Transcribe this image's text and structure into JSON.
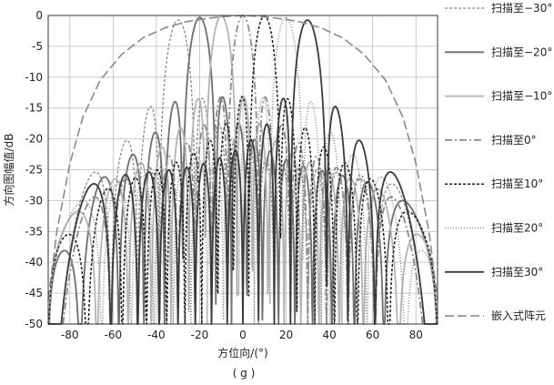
{
  "chart_data": {
    "type": "line",
    "caption": "( g )",
    "xlabel": "方位向/(°)",
    "ylabel": "方向图幅值/dB",
    "xlim": [
      -90,
      90
    ],
    "ylim": [
      -50,
      0
    ],
    "xticks": [
      -80,
      -60,
      -40,
      -20,
      0,
      20,
      40,
      60,
      80
    ],
    "yticks": [
      0,
      -5,
      -10,
      -15,
      -20,
      -25,
      -30,
      -35,
      -40,
      -45,
      -50
    ],
    "grid": true,
    "legend_position": "right",
    "series": [
      {
        "name": "扫描至−30°",
        "scan": -30,
        "dash": "3,2",
        "color": "#8a8a8a",
        "width": 1.3,
        "sidelobe_peaks": [
          [
            -78,
            -32
          ],
          [
            -70,
            -26
          ],
          [
            -60,
            -22
          ],
          [
            -48,
            -17
          ],
          [
            -12,
            -14
          ],
          [
            8,
            -16
          ],
          [
            22,
            -18
          ],
          [
            40,
            -21
          ],
          [
            56,
            -23
          ],
          [
            72,
            -25
          ],
          [
            84,
            -34
          ]
        ]
      },
      {
        "name": "扫描至−20°",
        "scan": -20,
        "dash": "",
        "color": "#6e6e6e",
        "width": 1.8,
        "sidelobe_peaks": [
          [
            -82,
            -40
          ],
          [
            -66,
            -22
          ],
          [
            -54,
            -18
          ],
          [
            -38,
            -14
          ],
          [
            -2,
            -17
          ],
          [
            10,
            -19
          ],
          [
            26,
            -21
          ],
          [
            44,
            -21
          ],
          [
            60,
            -22
          ],
          [
            76,
            -24
          ]
        ]
      },
      {
        "name": "扫描至−10°",
        "scan": -10,
        "dash": "",
        "color": "#b4b4b4",
        "width": 1.8,
        "sidelobe_peaks": [
          [
            -80,
            -38
          ],
          [
            -64,
            -24
          ],
          [
            -48,
            -20
          ],
          [
            -28,
            -14
          ],
          [
            8,
            -14
          ],
          [
            20,
            -16
          ],
          [
            36,
            -19
          ],
          [
            52,
            -22
          ],
          [
            68,
            -22
          ],
          [
            80,
            -30
          ]
        ]
      },
      {
        "name": "扫描至0°",
        "scan": 0,
        "dash": "8,3,2,3",
        "color": "#8c8c8c",
        "width": 1.8,
        "sidelobe_peaks": [
          [
            -78,
            -36
          ],
          [
            -62,
            -26
          ],
          [
            -44,
            -21
          ],
          [
            -18,
            -13.5
          ],
          [
            18,
            -13.5
          ],
          [
            44,
            -21
          ],
          [
            62,
            -26
          ],
          [
            78,
            -36
          ]
        ]
      },
      {
        "name": "扫描至10°",
        "scan": 10,
        "dash": "3,2",
        "color": "#1e1e1e",
        "width": 1.5,
        "sidelobe_peaks": [
          [
            -80,
            -36
          ],
          [
            -68,
            -24
          ],
          [
            -52,
            -22
          ],
          [
            -36,
            -19
          ],
          [
            -20,
            -16
          ],
          [
            -8,
            -14
          ],
          [
            28,
            -14
          ],
          [
            48,
            -20
          ],
          [
            64,
            -24
          ],
          [
            80,
            -38
          ]
        ]
      },
      {
        "name": "扫描至20°",
        "scan": 20,
        "dash": "1,2",
        "color": "#8c8c8c",
        "width": 1.5,
        "sidelobe_peaks": [
          [
            -76,
            -24
          ],
          [
            -60,
            -22
          ],
          [
            -44,
            -21
          ],
          [
            -26,
            -21
          ],
          [
            -10,
            -19
          ],
          [
            2,
            -17
          ],
          [
            38,
            -14
          ],
          [
            54,
            -18
          ],
          [
            66,
            -22
          ],
          [
            82,
            -40
          ]
        ]
      },
      {
        "name": "扫描至30°",
        "scan": 30,
        "dash": "",
        "color": "#3a3a3a",
        "width": 1.8,
        "sidelobe_peaks": [
          [
            -84,
            -34
          ],
          [
            -72,
            -25
          ],
          [
            -56,
            -23
          ],
          [
            -40,
            -21
          ],
          [
            -22,
            -18
          ],
          [
            -8,
            -16
          ],
          [
            12,
            -14
          ],
          [
            40,
            -19
          ],
          [
            54,
            -16
          ],
          [
            66,
            -24
          ],
          [
            80,
            -34
          ]
        ]
      },
      {
        "name": "嵌入式阵元",
        "scan": null,
        "dash": "10,4",
        "color": "#8a8a8a",
        "width": 1.6,
        "points": [
          [
            -90,
            -46
          ],
          [
            -86,
            -35
          ],
          [
            -80,
            -24
          ],
          [
            -74,
            -16.5
          ],
          [
            -66,
            -10.5
          ],
          [
            -56,
            -6.3
          ],
          [
            -46,
            -3.6
          ],
          [
            -36,
            -2
          ],
          [
            -26,
            -1
          ],
          [
            -16,
            -0.45
          ],
          [
            -8,
            -0.15
          ],
          [
            0,
            0
          ],
          [
            8,
            -0.15
          ],
          [
            16,
            -0.45
          ],
          [
            26,
            -1
          ],
          [
            36,
            -2
          ],
          [
            46,
            -3.6
          ],
          [
            56,
            -6.3
          ],
          [
            66,
            -10.5
          ],
          [
            74,
            -16.5
          ],
          [
            80,
            -24
          ],
          [
            86,
            -35
          ],
          [
            90,
            -46
          ]
        ]
      }
    ]
  }
}
